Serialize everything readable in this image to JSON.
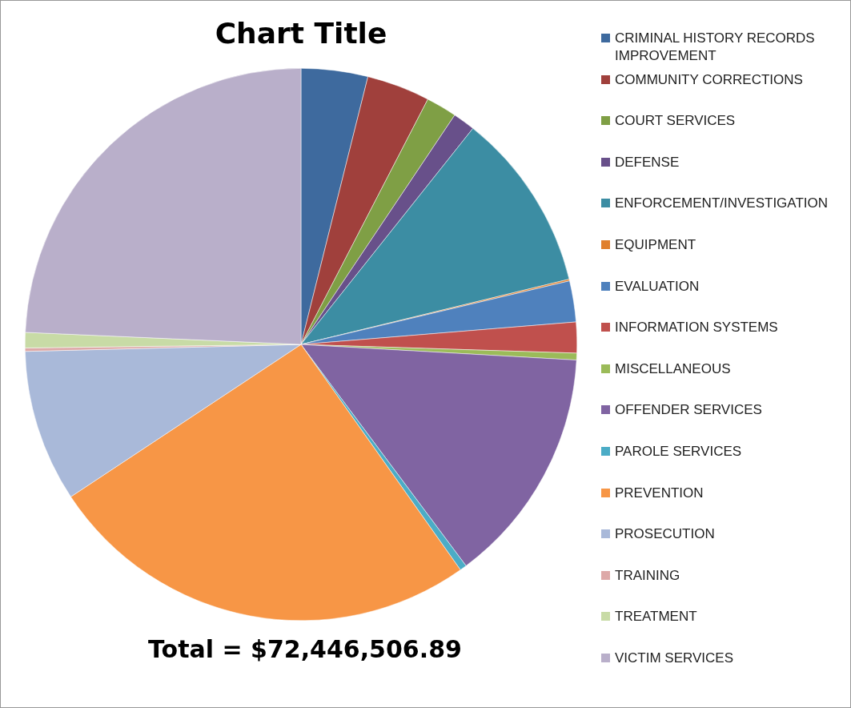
{
  "chart_data": {
    "type": "pie",
    "title": "Chart Title",
    "categories": [
      "CRIMINAL HISTORY RECORDS IMPROVEMENT",
      "COMMUNITY CORRECTIONS",
      "COURT SERVICES",
      "DEFENSE",
      "ENFORCEMENT/INVESTIGATION",
      "EQUIPMENT",
      "EVALUATION",
      "INFORMATION SYSTEMS",
      "MISCELLANEOUS",
      "OFFENDER SERVICES",
      "PAROLE SERVICES",
      "PREVENTION",
      "PROSECUTION",
      "TRAINING",
      "TREATMENT",
      "VICTIM SERVICES"
    ],
    "values": [
      3.9,
      3.7,
      1.8,
      1.3,
      10.5,
      0.1,
      2.4,
      1.8,
      0.4,
      13.9,
      0.4,
      25.5,
      8.9,
      0.2,
      0.9,
      24.3
    ],
    "colors": [
      "#3e6a9e",
      "#a0403c",
      "#7f9f45",
      "#68508a",
      "#3c8da3",
      "#e07f2c",
      "#4f81bd",
      "#c0504d",
      "#9bbb59",
      "#8064a2",
      "#4bacc6",
      "#f79646",
      "#a9b9d9",
      "#dda9a8",
      "#c8dba6",
      "#b9afca"
    ],
    "legend": "right",
    "annotations": [
      "Total = $72,446,506.89"
    ]
  }
}
